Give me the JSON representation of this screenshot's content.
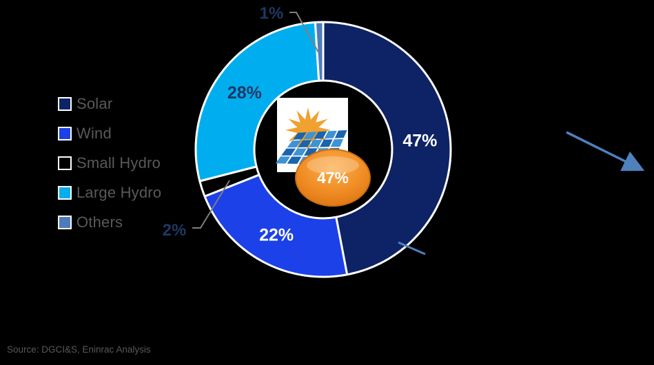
{
  "background_color": "#000000",
  "chart_data": {
    "type": "pie",
    "subtype": "donut",
    "title": "",
    "categories": [
      "Solar",
      "Wind",
      "Small Hydro",
      "Large Hydro",
      "Others"
    ],
    "values": [
      47,
      22,
      2,
      28,
      1
    ],
    "unit": "%",
    "colors": [
      "#0E2365",
      "#1C41E8",
      "#000000",
      "#00AEEF",
      "#4E7CBB"
    ],
    "slice_labels": [
      "47%",
      "22%",
      "2%",
      "28%",
      "1%"
    ],
    "label_placement": [
      "inside",
      "inside",
      "callout",
      "inside",
      "callout"
    ],
    "inside_label_colors": [
      "#FFFFFF",
      "#FFFFFF",
      "",
      "#1F3864",
      ""
    ],
    "callout_label_color": "#1F3864",
    "start_angle_deg": 0,
    "direction": "clockwise",
    "legend_position": "left",
    "slice_border_color": "#FFFFFF",
    "center_badge": {
      "text": "47%",
      "text_color": "#FFFFFF"
    },
    "center_icon": "sun-and-solar-panel"
  },
  "legend": {
    "text_color": "#595959",
    "items": [
      {
        "label": "Solar",
        "color": "#0E2365"
      },
      {
        "label": "Wind",
        "color": "#1C41E8"
      },
      {
        "label": "Small Hydro",
        "color": "#000000"
      },
      {
        "label": "Large Hydro",
        "color": "#00AEEF"
      },
      {
        "label": "Others",
        "color": "#4E7CBB"
      }
    ]
  },
  "annotations": {
    "leader_line_color": "#7F7F7F",
    "trend_arrow_color": "#4F81BD"
  },
  "badge": {
    "fill_top": "#FBAE4C",
    "fill_mid": "#F08C24",
    "fill_bottom": "#D96E0E",
    "stroke": "#C96F12"
  },
  "footer": {
    "source_text": "Source: DGCI&S, Eninrac Analysis"
  }
}
